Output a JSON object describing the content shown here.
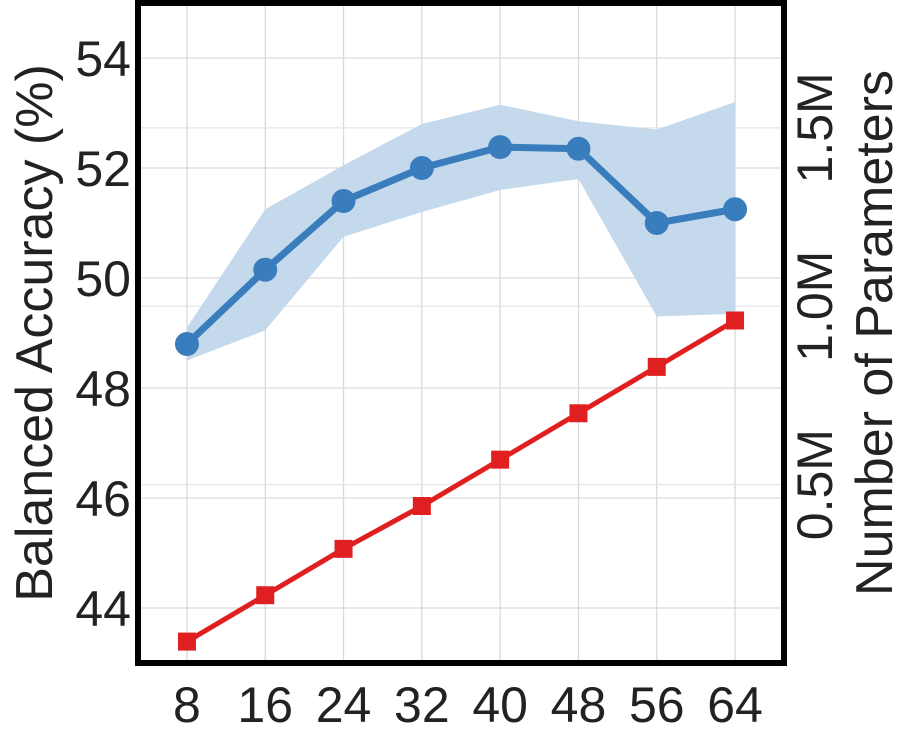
{
  "chart_data": {
    "type": "line",
    "title": "",
    "xlabel": "",
    "ylabel": "Balanced Accuracy (%)",
    "y2label": "Number of Parameters",
    "x": [
      8,
      16,
      24,
      32,
      40,
      48,
      56,
      64
    ],
    "xticks": [
      "8",
      "16",
      "24",
      "32",
      "40",
      "48",
      "56",
      "64"
    ],
    "ylim": [
      43,
      55
    ],
    "yticks": [
      44,
      46,
      48,
      50,
      52,
      54
    ],
    "yticklabels": [
      "44",
      "46",
      "48",
      "50",
      "52",
      "54"
    ],
    "y2lim": [
      0,
      1.85
    ],
    "y2ticks": [
      0.5,
      1.0,
      1.5
    ],
    "y2ticklabels": [
      "0.5M",
      "1.0M",
      "1.5M"
    ],
    "grid": true,
    "series": [
      {
        "axis": "left",
        "color": "#3a7dbd",
        "band_color": "#c2d7ec",
        "marker": "circle",
        "values": [
          48.8,
          50.15,
          51.4,
          52.0,
          52.38,
          52.35,
          51.0,
          51.25
        ],
        "lower": [
          48.5,
          49.05,
          50.75,
          51.2,
          51.6,
          51.8,
          49.3,
          49.35
        ],
        "upper": [
          49.1,
          51.25,
          52.05,
          52.8,
          53.15,
          52.85,
          52.7,
          53.2
        ]
      },
      {
        "axis": "right",
        "color": "#e02020",
        "marker": "square",
        "values": [
          0.06,
          0.19,
          0.32,
          0.44,
          0.57,
          0.7,
          0.83,
          0.96
        ]
      }
    ]
  }
}
